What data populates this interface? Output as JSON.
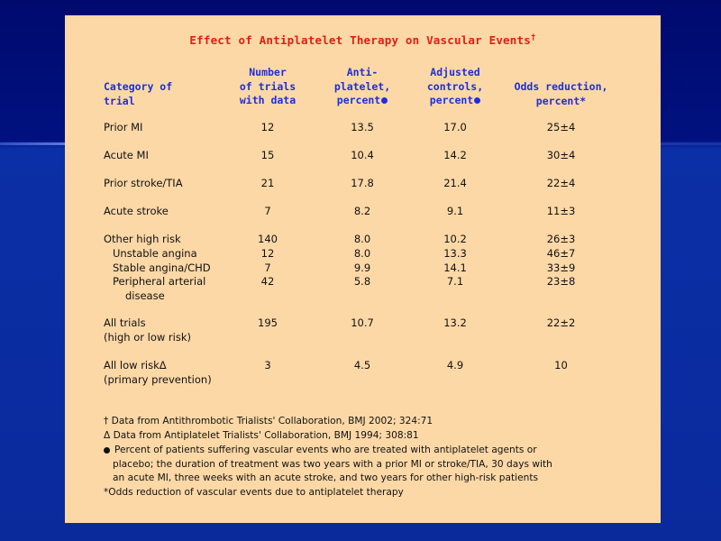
{
  "title": "Effect of Antiplatelet Therapy on Vascular Events",
  "title_mark": "†",
  "headers": {
    "category": [
      "Category of",
      "trial"
    ],
    "trials": [
      "Number",
      "of trials",
      "with data"
    ],
    "antiplatelet": [
      "Anti-",
      "platelet,",
      "percent"
    ],
    "controls": [
      "Adjusted",
      "controls,",
      "percent"
    ],
    "odds": [
      "Odds reduction,",
      "percent*"
    ]
  },
  "rows": [
    {
      "label": "Prior MI",
      "trials": "12",
      "anti": "13.5",
      "ctrl": "17.0",
      "odds": "25±4"
    },
    {
      "label": "Acute MI",
      "trials": "15",
      "anti": "10.4",
      "ctrl": "14.2",
      "odds": "30±4"
    },
    {
      "label": "Prior stroke/TIA",
      "trials": "21",
      "anti": "17.8",
      "ctrl": "21.4",
      "odds": "22±4"
    },
    {
      "label": "Acute stroke",
      "trials": "7",
      "anti": "8.2",
      "ctrl": "9.1",
      "odds": "11±3"
    },
    {
      "label": "Other high risk",
      "trials": "140",
      "anti": "8.0",
      "ctrl": "10.2",
      "odds": "26±3"
    },
    {
      "label": "Unstable angina",
      "trials": "12",
      "anti": "8.0",
      "ctrl": "13.3",
      "odds": "46±7"
    },
    {
      "label": "Stable angina/CHD",
      "trials": "7",
      "anti": "9.9",
      "ctrl": "14.1",
      "odds": "33±9"
    },
    {
      "label": "Peripheral arterial",
      "label2": "disease",
      "trials": "42",
      "anti": "5.8",
      "ctrl": "7.1",
      "odds": "23±8"
    },
    {
      "label": "All trials",
      "label2": "(high or low risk)",
      "trials": "195",
      "anti": "10.7",
      "ctrl": "13.2",
      "odds": "22±2"
    },
    {
      "label": "All low riskΔ",
      "label2": "(primary prevention)",
      "trials": "3",
      "anti": "4.5",
      "ctrl": "4.9",
      "odds": "10"
    }
  ],
  "footnotes": [
    "† Data from Antithrombotic Trialists' Collaboration, BMJ 2002; 324:71",
    "Δ Data from Antiplatelet Trialists' Collaboration, BMJ 1994; 308:81",
    "Percent of patients suffering vascular events who are treated with antiplatelet agents or",
    "placebo; the duration of treatment was two years with a prior MI or stroke/TIA, 30 days with",
    "an acute MI, three weeks with an acute stroke, and two years for other high-risk patients",
    "*Odds reduction of vascular events due to antiplatelet therapy"
  ],
  "colors": {
    "background": "#0a2a9c",
    "slide": "#fcd8a6",
    "title": "#e11d13",
    "header": "#1d2fd8"
  }
}
